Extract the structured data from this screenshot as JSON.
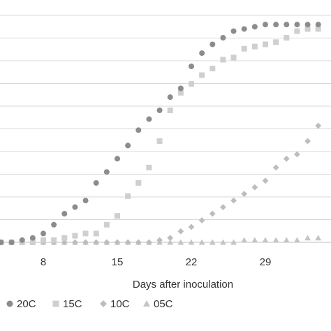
{
  "chart_data": {
    "type": "scatter",
    "title": "",
    "xlabel": "Days after inoculation",
    "ylabel": "",
    "x_ticks": [
      8,
      15,
      22,
      29
    ],
    "xlim": [
      4,
      35
    ],
    "ylim": [
      0,
      1
    ],
    "grid": true,
    "legend_position": "bottom",
    "series": [
      {
        "name": "20C",
        "marker": "circle",
        "color": "#8c8c8c",
        "x": [
          4,
          5,
          6,
          7,
          8,
          9,
          10,
          11,
          12,
          13,
          14,
          15,
          16,
          17,
          18,
          19,
          20,
          21,
          22,
          23,
          24,
          25,
          26,
          27,
          28,
          29,
          30,
          31,
          32,
          33,
          34
        ],
        "y": [
          0.0,
          0.0,
          0.01,
          0.02,
          0.04,
          0.08,
          0.13,
          0.16,
          0.19,
          0.27,
          0.32,
          0.38,
          0.44,
          0.51,
          0.56,
          0.6,
          0.66,
          0.7,
          0.8,
          0.86,
          0.9,
          0.93,
          0.96,
          0.97,
          0.98,
          0.99,
          0.99,
          0.99,
          0.99,
          0.99,
          0.99
        ]
      },
      {
        "name": "15C",
        "marker": "square",
        "color": "#cfcfcf",
        "x": [
          4,
          5,
          6,
          7,
          8,
          9,
          10,
          11,
          12,
          13,
          14,
          15,
          16,
          17,
          18,
          19,
          20,
          21,
          22,
          23,
          24,
          25,
          26,
          27,
          28,
          29,
          30,
          31,
          32,
          33,
          34
        ],
        "y": [
          0.0,
          0.0,
          0.0,
          0.0,
          0.01,
          0.01,
          0.02,
          0.03,
          0.04,
          0.04,
          0.08,
          0.12,
          0.21,
          0.27,
          0.34,
          0.46,
          0.6,
          0.68,
          0.72,
          0.76,
          0.79,
          0.83,
          0.84,
          0.88,
          0.89,
          0.9,
          0.91,
          0.93,
          0.96,
          0.97,
          0.97
        ]
      },
      {
        "name": "10C",
        "marker": "diamond",
        "color": "#bdbdbd",
        "x": [
          4,
          5,
          6,
          7,
          8,
          9,
          10,
          11,
          12,
          13,
          14,
          15,
          16,
          17,
          18,
          19,
          20,
          21,
          22,
          23,
          24,
          25,
          26,
          27,
          28,
          29,
          30,
          31,
          32,
          33,
          34
        ],
        "y": [
          0.0,
          0.0,
          0.0,
          0.0,
          0.0,
          0.0,
          0.0,
          0.0,
          0.0,
          0.0,
          0.0,
          0.0,
          0.0,
          0.0,
          0.0,
          0.01,
          0.02,
          0.05,
          0.07,
          0.1,
          0.13,
          0.16,
          0.19,
          0.22,
          0.25,
          0.28,
          0.34,
          0.38,
          0.4,
          0.46,
          0.53
        ]
      },
      {
        "name": "05C",
        "marker": "triangle",
        "color": "#c4c4c4",
        "x": [
          4,
          5,
          6,
          7,
          8,
          9,
          10,
          11,
          12,
          13,
          14,
          15,
          16,
          17,
          18,
          19,
          20,
          21,
          22,
          23,
          24,
          25,
          26,
          27,
          28,
          29,
          30,
          31,
          32,
          33,
          34
        ],
        "y": [
          0.0,
          0.0,
          0.0,
          0.0,
          0.0,
          0.0,
          0.0,
          0.0,
          0.0,
          0.0,
          0.0,
          0.0,
          0.0,
          0.0,
          0.0,
          0.0,
          0.0,
          0.0,
          0.0,
          0.0,
          0.0,
          0.0,
          0.0,
          0.01,
          0.01,
          0.01,
          0.01,
          0.01,
          0.01,
          0.02,
          0.02
        ]
      }
    ]
  }
}
